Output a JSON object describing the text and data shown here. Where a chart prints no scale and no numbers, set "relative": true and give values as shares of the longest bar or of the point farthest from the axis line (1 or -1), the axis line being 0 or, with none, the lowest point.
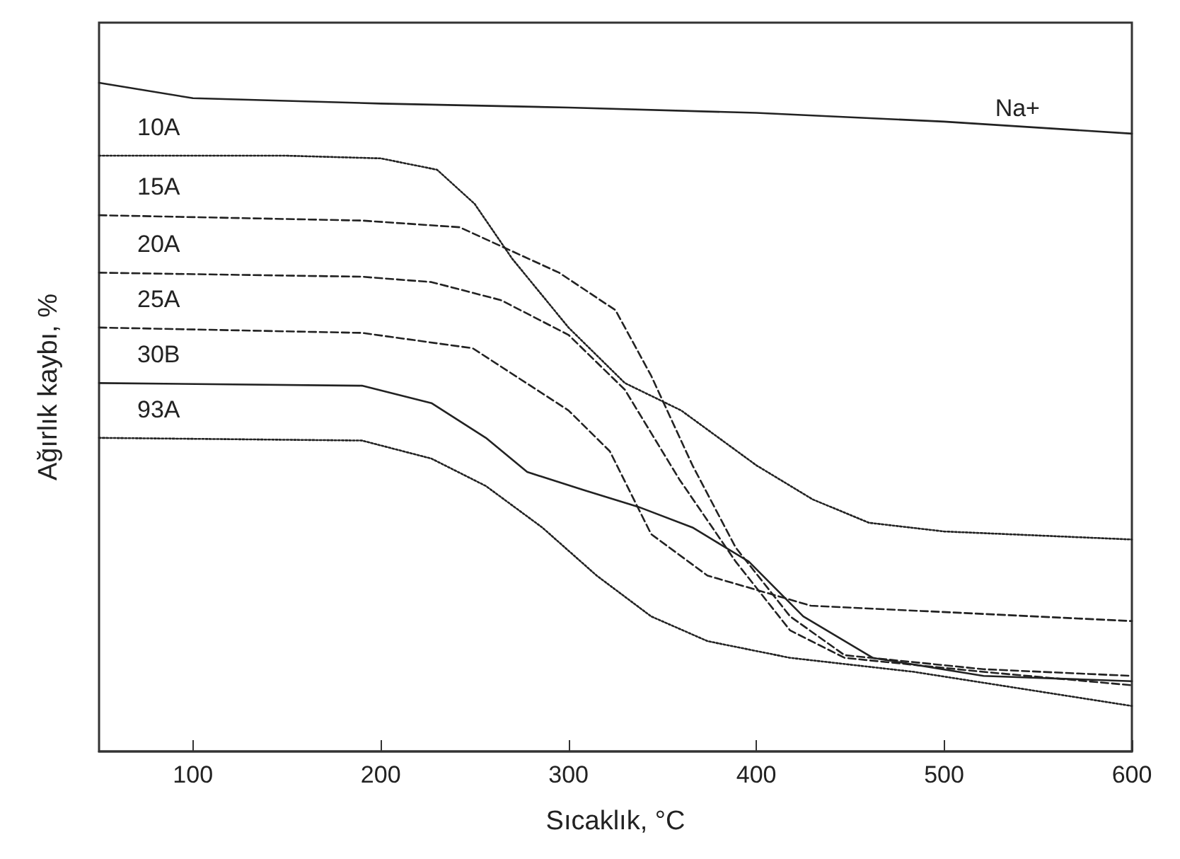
{
  "chart_data": {
    "type": "line",
    "relative": true,
    "xlabel": "Sıcaklık, °C",
    "ylabel": "Ağırlık kaybı, %",
    "xlim": [
      50,
      600
    ],
    "xticks": [
      100,
      200,
      300,
      400,
      500,
      600
    ],
    "grid": false,
    "legend": false,
    "marker": "none",
    "series": [
      {
        "name": "Na+",
        "color": "#222222",
        "line_style": "solid",
        "x": [
          50,
          100,
          200,
          300,
          400,
          500,
          600
        ],
        "values": [
          1.0,
          0.977,
          0.969,
          0.963,
          0.955,
          0.942,
          0.924
        ]
      },
      {
        "name": "10A",
        "color": "#222222",
        "line_style": "dotted",
        "x": [
          50,
          150,
          200,
          230,
          250,
          270,
          300,
          330,
          360,
          400,
          430,
          460,
          500,
          600
        ],
        "values": [
          0.891,
          0.891,
          0.887,
          0.87,
          0.819,
          0.737,
          0.634,
          0.551,
          0.51,
          0.428,
          0.377,
          0.342,
          0.329,
          0.317
        ]
      },
      {
        "name": "15A",
        "color": "#222222",
        "line_style": "dashed",
        "x": [
          50,
          190,
          242,
          295,
          325,
          344,
          366,
          389,
          418,
          447,
          521,
          600
        ],
        "values": [
          0.802,
          0.794,
          0.784,
          0.716,
          0.66,
          0.562,
          0.428,
          0.305,
          0.202,
          0.144,
          0.123,
          0.113
        ]
      },
      {
        "name": "20A",
        "color": "#222222",
        "line_style": "dashed",
        "x": [
          50,
          190,
          227,
          264,
          300,
          330,
          359,
          389,
          418,
          447,
          521,
          600
        ],
        "values": [
          0.716,
          0.71,
          0.702,
          0.675,
          0.623,
          0.541,
          0.407,
          0.284,
          0.181,
          0.14,
          0.119,
          0.099
        ]
      },
      {
        "name": "25A",
        "color": "#222222",
        "line_style": "dashed",
        "x": [
          50,
          190,
          249,
          300,
          322,
          344,
          374,
          429,
          600
        ],
        "values": [
          0.634,
          0.626,
          0.603,
          0.51,
          0.449,
          0.325,
          0.263,
          0.218,
          0.195
        ]
      },
      {
        "name": "30B",
        "color": "#222222",
        "line_style": "solid",
        "x": [
          50,
          190,
          227,
          256,
          278,
          308,
          337,
          366,
          396,
          425,
          462,
          521,
          600
        ],
        "values": [
          0.551,
          0.547,
          0.521,
          0.469,
          0.418,
          0.391,
          0.366,
          0.335,
          0.284,
          0.202,
          0.14,
          0.113,
          0.105
        ]
      },
      {
        "name": "93A",
        "color": "#222222",
        "line_style": "dotted",
        "x": [
          50,
          190,
          227,
          256,
          286,
          315,
          344,
          374,
          418,
          484,
          600
        ],
        "values": [
          0.469,
          0.465,
          0.438,
          0.397,
          0.335,
          0.263,
          0.202,
          0.165,
          0.14,
          0.119,
          0.068
        ]
      }
    ]
  }
}
